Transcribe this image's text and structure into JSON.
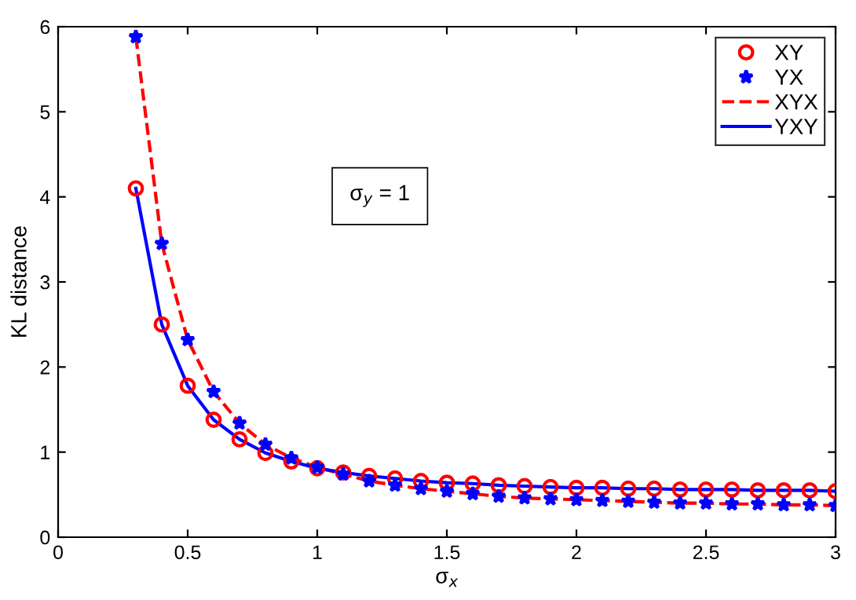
{
  "chart_data": {
    "type": "line",
    "xlabel": "σ$_{x}$",
    "ylabel": "KL distance",
    "x": [
      0.3,
      0.4,
      0.5,
      0.6,
      0.7,
      0.8,
      0.9,
      1.0,
      1.1,
      1.2,
      1.3,
      1.4,
      1.5,
      1.6,
      1.7,
      1.8,
      1.9,
      2.0,
      2.1,
      2.2,
      2.3,
      2.4,
      2.5,
      2.6,
      2.7,
      2.8,
      2.9,
      3.0
    ],
    "series": [
      {
        "name": "XY",
        "type": "scatter",
        "marker": "circle",
        "color": "#ff0000",
        "values": [
          4.1,
          2.5,
          1.78,
          1.38,
          1.15,
          0.99,
          0.89,
          0.81,
          0.76,
          0.72,
          0.69,
          0.66,
          0.64,
          0.63,
          0.61,
          0.6,
          0.59,
          0.58,
          0.58,
          0.57,
          0.57,
          0.56,
          0.56,
          0.56,
          0.55,
          0.55,
          0.55,
          0.54
        ]
      },
      {
        "name": "YX",
        "type": "scatter",
        "marker": "star",
        "color": "#0000ff",
        "values": [
          5.88,
          3.45,
          2.32,
          1.71,
          1.34,
          1.09,
          0.93,
          0.82,
          0.74,
          0.66,
          0.61,
          0.57,
          0.54,
          0.51,
          0.48,
          0.46,
          0.45,
          0.44,
          0.43,
          0.42,
          0.41,
          0.4,
          0.4,
          0.39,
          0.39,
          0.38,
          0.38,
          0.37
        ]
      },
      {
        "name": "XYX",
        "line_style": "dashed",
        "color": "#ff0000",
        "values": [
          5.88,
          3.45,
          2.32,
          1.71,
          1.34,
          1.09,
          0.93,
          0.82,
          0.74,
          0.66,
          0.61,
          0.57,
          0.54,
          0.51,
          0.48,
          0.46,
          0.45,
          0.44,
          0.43,
          0.42,
          0.41,
          0.4,
          0.4,
          0.39,
          0.39,
          0.38,
          0.38,
          0.37
        ]
      },
      {
        "name": "YXY",
        "line_style": "solid",
        "color": "#0000ff",
        "values": [
          4.1,
          2.5,
          1.78,
          1.38,
          1.15,
          0.99,
          0.89,
          0.81,
          0.76,
          0.72,
          0.69,
          0.66,
          0.64,
          0.63,
          0.61,
          0.6,
          0.59,
          0.58,
          0.58,
          0.57,
          0.57,
          0.56,
          0.56,
          0.56,
          0.55,
          0.55,
          0.55,
          0.54
        ]
      }
    ],
    "annotations": [
      "σ$_{y}$ = 1"
    ],
    "xlim": [
      0,
      3
    ],
    "xticks": [
      0,
      0.5,
      1,
      1.5,
      2,
      2.5,
      3
    ],
    "ylim": [
      0,
      6
    ],
    "yticks": [
      0,
      1,
      2,
      3,
      4,
      5,
      6
    ],
    "grid": false,
    "legend": "top right"
  }
}
